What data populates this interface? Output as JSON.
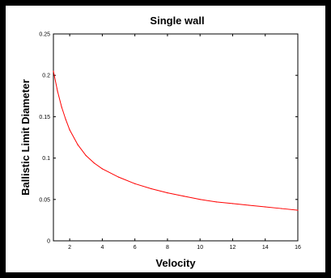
{
  "chart_data": {
    "type": "line",
    "title": "Single wall",
    "xlabel": "Velocity",
    "ylabel": "Ballistic Limit Diameter",
    "xlim": [
      1,
      16
    ],
    "ylim": [
      0,
      0.25
    ],
    "x_ticks": [
      "2",
      "4",
      "6",
      "8",
      "10",
      "12",
      "14",
      "16"
    ],
    "y_ticks": [
      "0",
      "0.05",
      "0.1",
      "0.15",
      "0.2",
      "0.25"
    ],
    "grid": false,
    "series": [
      {
        "color": "#ff0000",
        "x": [
          1,
          1.25,
          1.5,
          1.75,
          2,
          2.5,
          3,
          3.5,
          4,
          5,
          6,
          7,
          8,
          9,
          10,
          11,
          12,
          13,
          14,
          15,
          16
        ],
        "y": [
          0.205,
          0.181,
          0.162,
          0.147,
          0.134,
          0.116,
          0.103,
          0.094,
          0.087,
          0.077,
          0.069,
          0.063,
          0.058,
          0.054,
          0.05,
          0.047,
          0.045,
          0.043,
          0.041,
          0.039,
          0.037
        ]
      }
    ]
  }
}
